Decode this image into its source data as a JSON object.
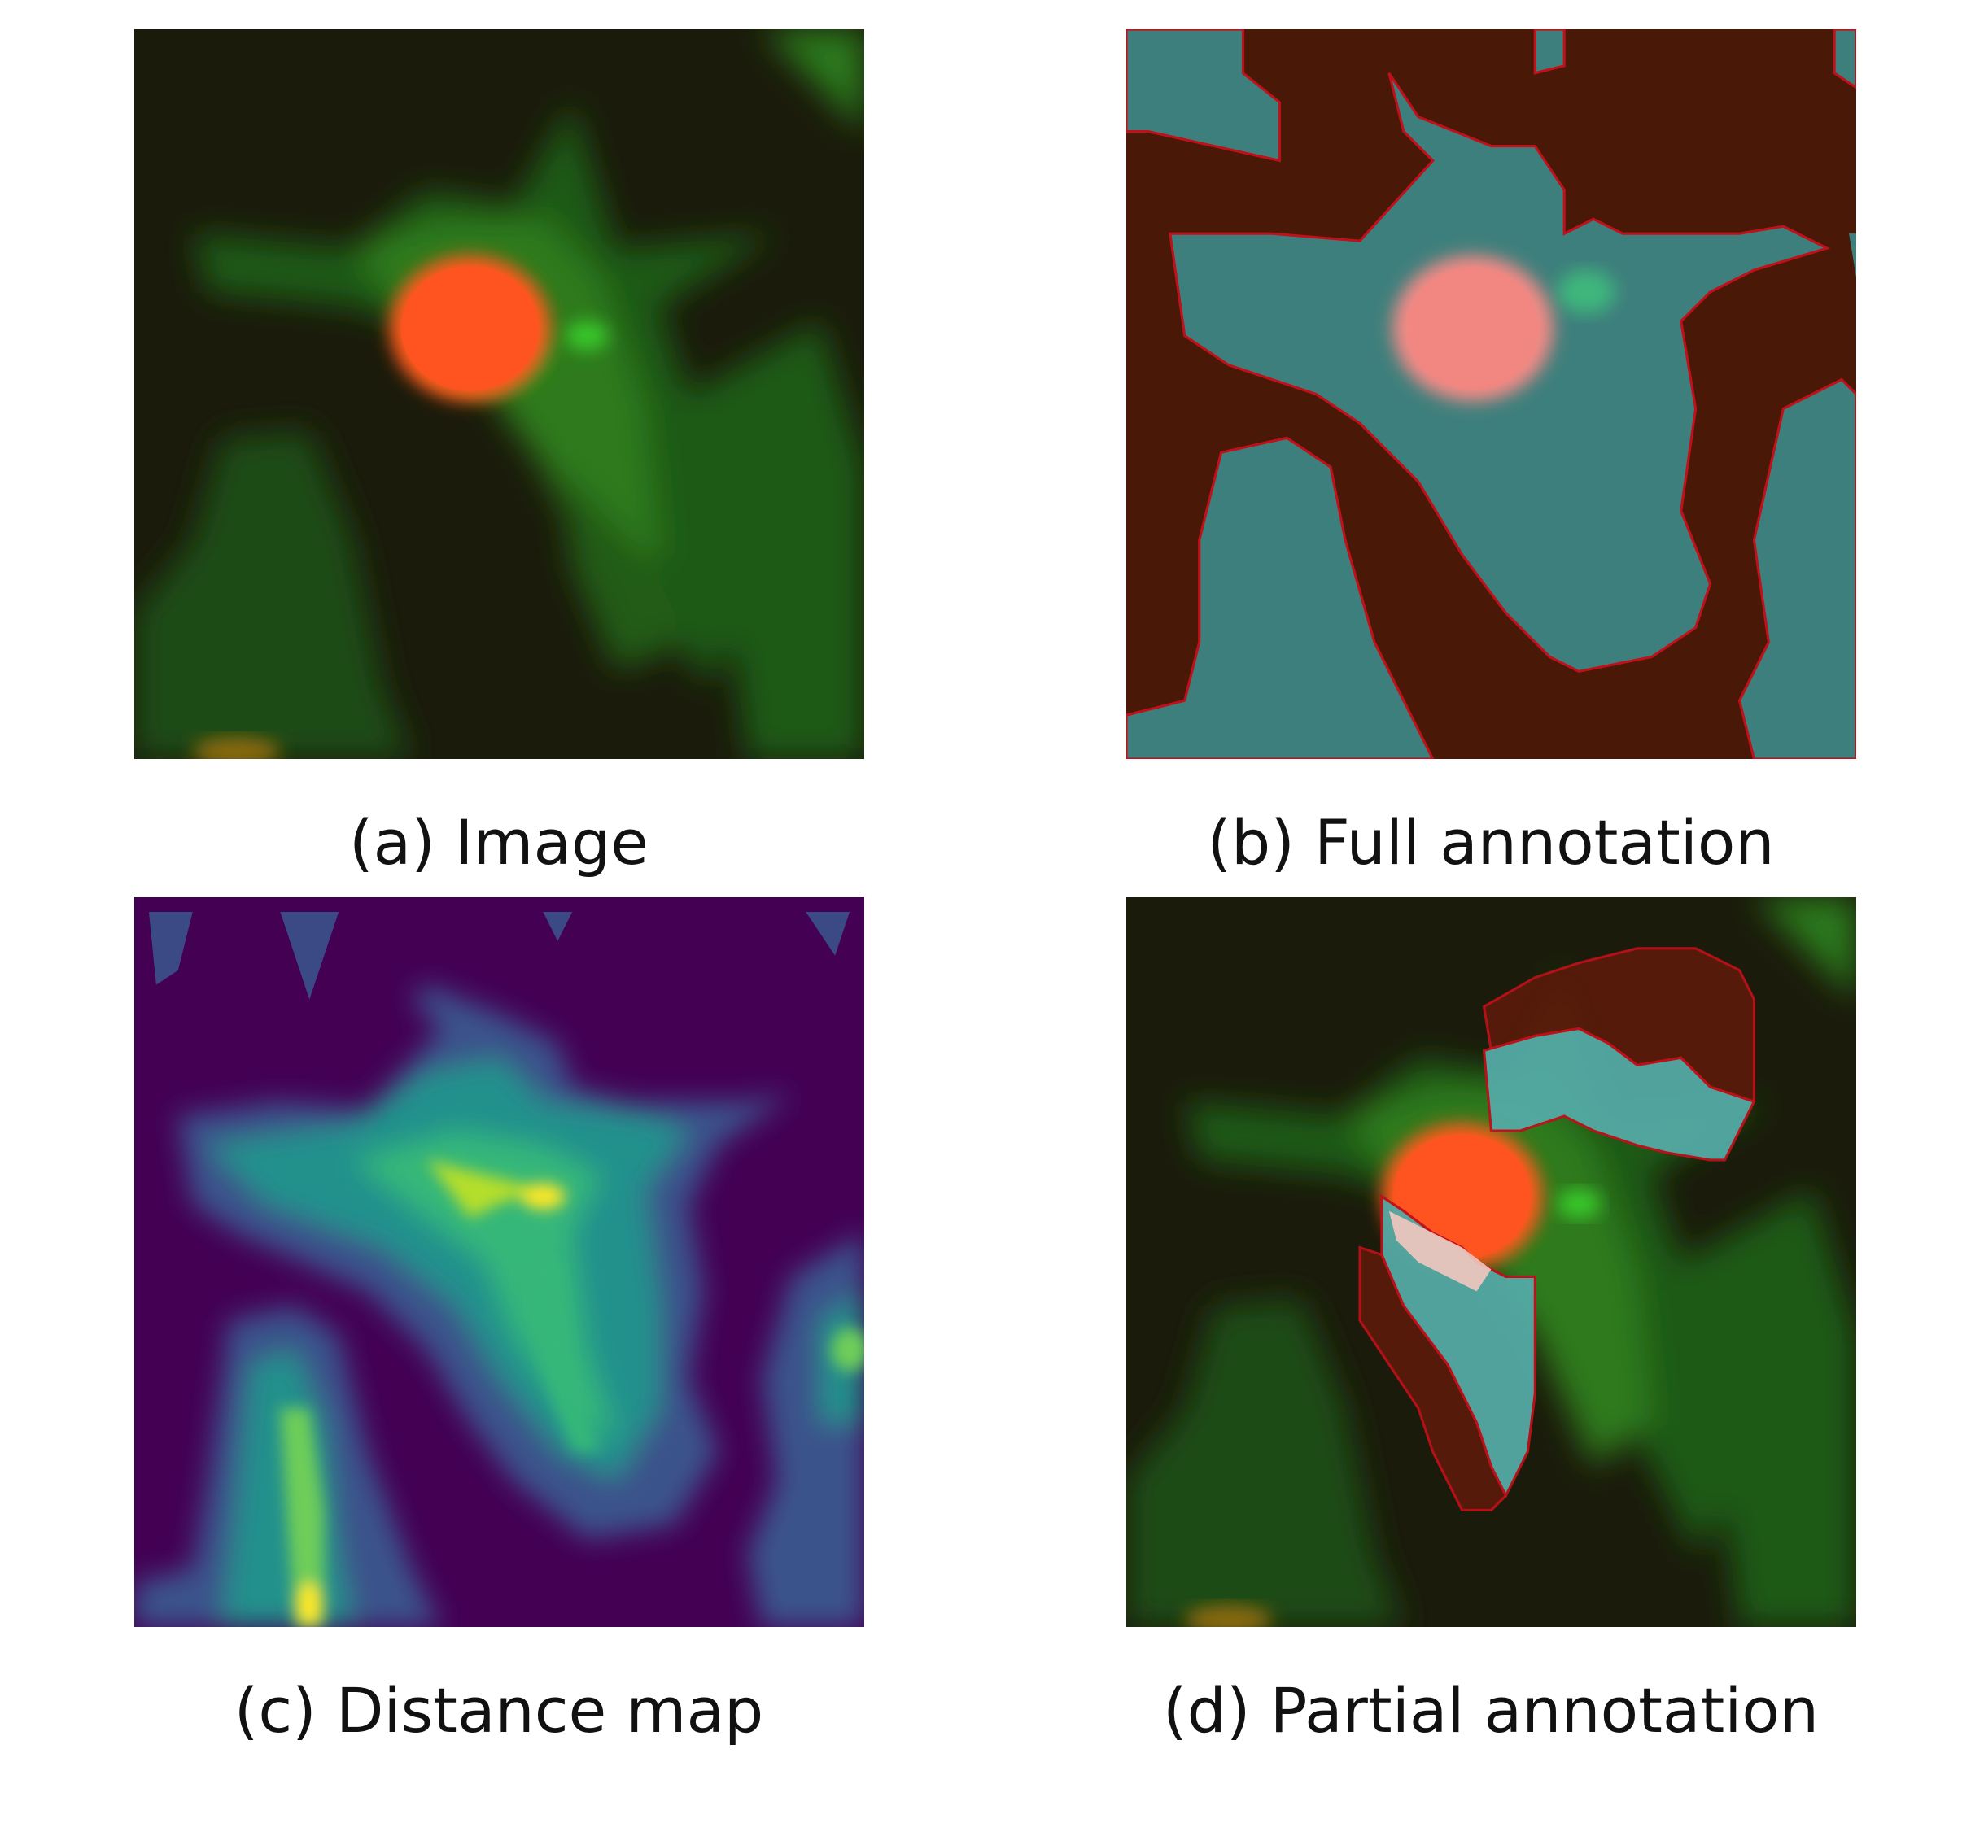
{
  "figure": {
    "panels": [
      {
        "id": "a",
        "caption": "(a) Image"
      },
      {
        "id": "b",
        "caption": "(b) Full annotation"
      },
      {
        "id": "c",
        "caption": "(c) Distance map"
      },
      {
        "id": "d",
        "caption": "(d) Partial annotation"
      }
    ]
  },
  "colors": {
    "background_dark": "#1c1a0c",
    "cytoplasm_green": "#2f7a1e",
    "nucleus_orange": "#ff5a1e",
    "annotation_cyan": "#3d9e9b",
    "annotation_brown": "#4a1807",
    "boundary_red": "#c0101a",
    "distance_low": "#440154",
    "distance_mid": "#21918c",
    "distance_high": "#fde725"
  }
}
